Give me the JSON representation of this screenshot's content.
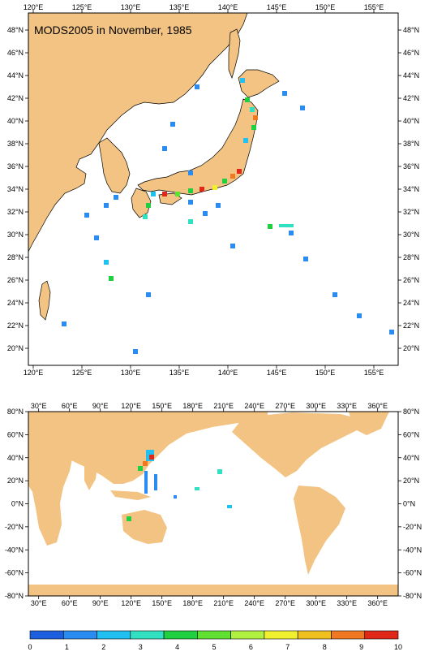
{
  "top_map": {
    "title": "MODS2005 in November, 1985",
    "lon_labels": [
      "120°E",
      "125°E",
      "130°E",
      "135°E",
      "140°E",
      "145°E",
      "150°E",
      "155°E"
    ],
    "lat_labels": [
      "20°N",
      "22°N",
      "24°N",
      "26°N",
      "28°N",
      "30°N",
      "32°N",
      "34°N",
      "36°N",
      "38°N",
      "40°N",
      "42°N",
      "44°N",
      "46°N",
      "48°N"
    ],
    "lon_range": [
      119.5,
      157.5
    ],
    "lat_range": [
      18.5,
      49.5
    ],
    "land_color": "#F2C382",
    "sea_color": "#FFFFFF"
  },
  "bottom_map": {
    "lon_labels": [
      "30°E",
      "60°E",
      "90°E",
      "120°E",
      "150°E",
      "180°E",
      "210°E",
      "240°E",
      "270°E",
      "300°E",
      "330°E",
      "360°E"
    ],
    "lat_labels": [
      "-80°N",
      "-60°N",
      "-40°N",
      "-20°N",
      "0°N",
      "20°N",
      "40°N",
      "60°N",
      "80°N"
    ],
    "lon_range": [
      20,
      380
    ],
    "lat_range": [
      -80,
      80
    ],
    "land_color": "#F2C382"
  },
  "colorbar": {
    "labels": [
      "0",
      "1",
      "2",
      "3",
      "4",
      "5",
      "6",
      "7",
      "8",
      "9",
      "10"
    ],
    "colors": [
      "#1E5FE0",
      "#2A8CF0",
      "#20C0F0",
      "#30E0C0",
      "#20D040",
      "#60E030",
      "#B0F040",
      "#F0F030",
      "#F0C020",
      "#F07820",
      "#E02818"
    ]
  }
}
